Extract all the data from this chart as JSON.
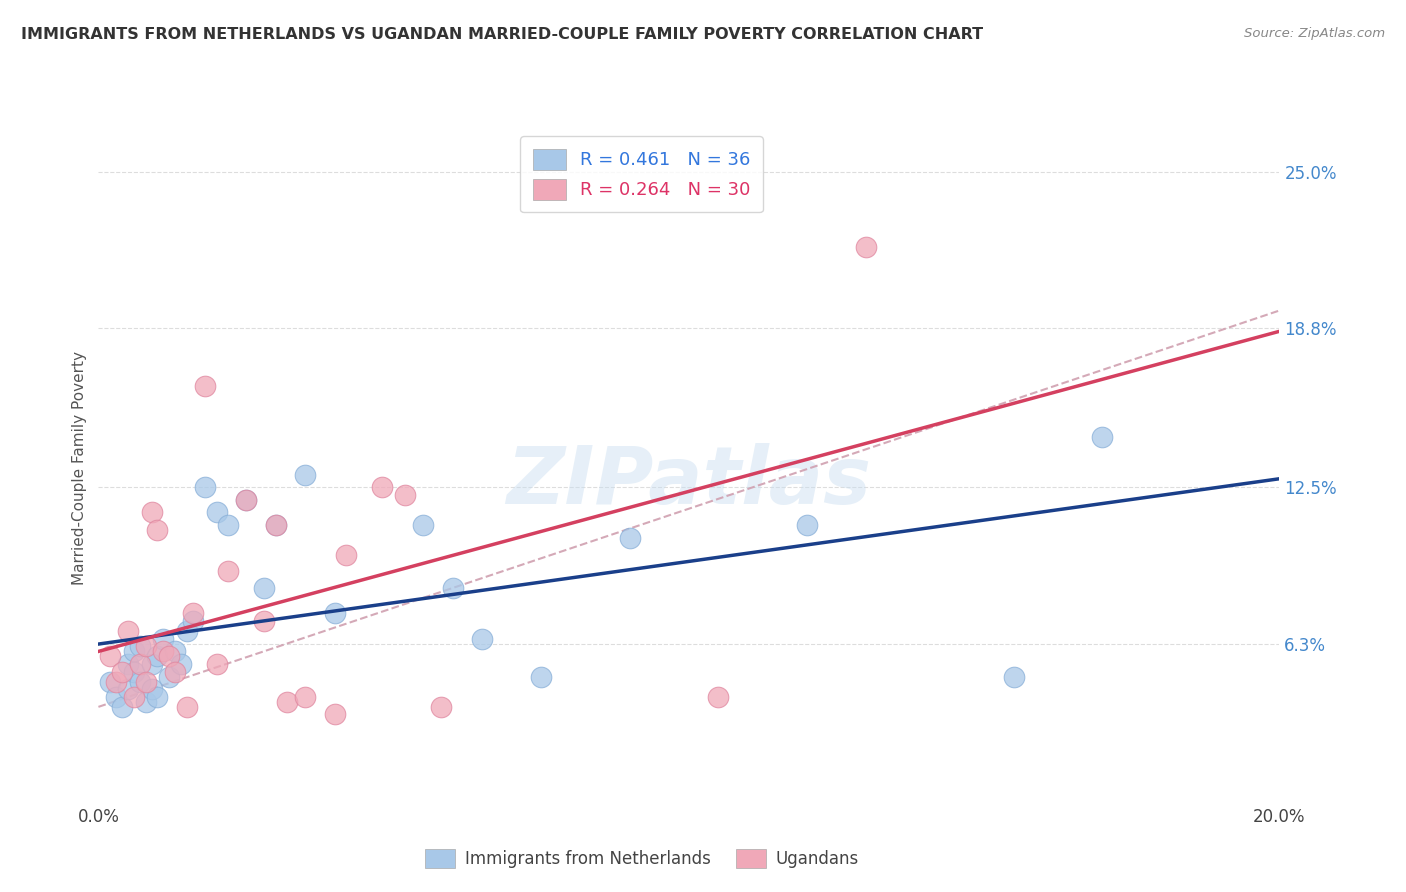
{
  "title": "IMMIGRANTS FROM NETHERLANDS VS UGANDAN MARRIED-COUPLE FAMILY POVERTY CORRELATION CHART",
  "source": "Source: ZipAtlas.com",
  "ylabel": "Married-Couple Family Poverty",
  "y_tick_labels_right": [
    "25.0%",
    "18.8%",
    "12.5%",
    "6.3%"
  ],
  "y_tick_values_right": [
    0.25,
    0.188,
    0.125,
    0.063
  ],
  "xlim": [
    0.0,
    0.2
  ],
  "ylim": [
    0.0,
    0.265
  ],
  "legend1_r": "0.461",
  "legend1_n": "36",
  "legend2_r": "0.264",
  "legend2_n": "30",
  "legend1_label": "Immigrants from Netherlands",
  "legend2_label": "Ugandans",
  "blue_color": "#a8c8e8",
  "pink_color": "#f0a8b8",
  "blue_line_color": "#1a3f8a",
  "pink_line_color": "#d44060",
  "dashed_line_color": "#d0a0b0",
  "background_color": "#ffffff",
  "watermark": "ZIPatlas",
  "blue_x": [
    0.002,
    0.003,
    0.004,
    0.005,
    0.005,
    0.006,
    0.006,
    0.007,
    0.007,
    0.008,
    0.009,
    0.009,
    0.01,
    0.01,
    0.011,
    0.012,
    0.013,
    0.014,
    0.015,
    0.016,
    0.018,
    0.02,
    0.022,
    0.025,
    0.028,
    0.03,
    0.035,
    0.04,
    0.055,
    0.06,
    0.065,
    0.075,
    0.09,
    0.12,
    0.155,
    0.17
  ],
  "blue_y": [
    0.048,
    0.042,
    0.038,
    0.055,
    0.045,
    0.052,
    0.06,
    0.048,
    0.062,
    0.04,
    0.055,
    0.045,
    0.058,
    0.042,
    0.065,
    0.05,
    0.06,
    0.055,
    0.068,
    0.072,
    0.125,
    0.115,
    0.11,
    0.12,
    0.085,
    0.11,
    0.13,
    0.075,
    0.11,
    0.085,
    0.065,
    0.05,
    0.105,
    0.11,
    0.05,
    0.145
  ],
  "pink_x": [
    0.002,
    0.003,
    0.004,
    0.005,
    0.006,
    0.007,
    0.008,
    0.008,
    0.009,
    0.01,
    0.011,
    0.012,
    0.013,
    0.015,
    0.016,
    0.018,
    0.02,
    0.022,
    0.025,
    0.028,
    0.03,
    0.032,
    0.035,
    0.04,
    0.042,
    0.048,
    0.052,
    0.058,
    0.105,
    0.13
  ],
  "pink_y": [
    0.058,
    0.048,
    0.052,
    0.068,
    0.042,
    0.055,
    0.048,
    0.062,
    0.115,
    0.108,
    0.06,
    0.058,
    0.052,
    0.038,
    0.075,
    0.165,
    0.055,
    0.092,
    0.12,
    0.072,
    0.11,
    0.04,
    0.042,
    0.035,
    0.098,
    0.125,
    0.122,
    0.038,
    0.042,
    0.22
  ]
}
